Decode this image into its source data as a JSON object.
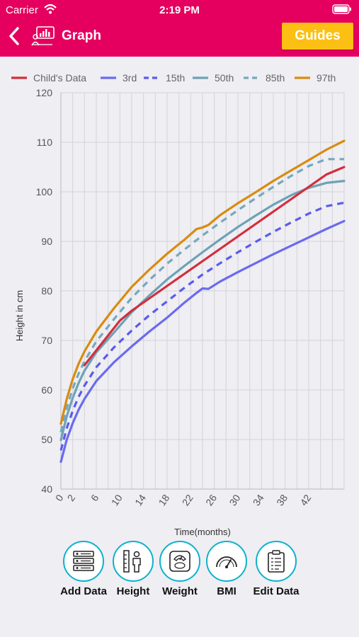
{
  "status_bar": {
    "carrier": "Carrier",
    "time": "2:19 PM"
  },
  "nav": {
    "title": "Graph",
    "guides_label": "Guides"
  },
  "chart_data": {
    "type": "line",
    "xlabel": "Time(months)",
    "ylabel": "Height in cm",
    "xlim": [
      0,
      48
    ],
    "ylim": [
      40,
      120
    ],
    "x_ticks": [
      0,
      2,
      6,
      10,
      14,
      18,
      22,
      26,
      30,
      34,
      38,
      42
    ],
    "y_ticks": [
      40,
      50,
      60,
      70,
      80,
      90,
      100,
      110,
      120
    ],
    "grid": true,
    "legend_position": "top",
    "series": [
      {
        "name": "Child's Data",
        "color": "#d42d3c",
        "dashed": false,
        "x": [
          4,
          6,
          8,
          10,
          12,
          15,
          18,
          21,
          24,
          27,
          30,
          33,
          36,
          39,
          42,
          45,
          48
        ],
        "y": [
          65,
          68,
          71,
          74,
          76,
          78.5,
          81,
          83.5,
          86,
          88.5,
          91,
          93.5,
          96,
          98.5,
          101,
          103.5,
          105
        ]
      },
      {
        "name": "3rd",
        "color": "#6a6af0",
        "dashed": false,
        "x": [
          0,
          1,
          2,
          3,
          4,
          6,
          9,
          12,
          15,
          18,
          21,
          23,
          24,
          25,
          27,
          30,
          33,
          36,
          39,
          42,
          45,
          48
        ],
        "y": [
          45.5,
          50,
          53.3,
          56,
          58.2,
          61.8,
          65.6,
          68.8,
          71.8,
          74.6,
          77.7,
          79.6,
          80.5,
          80.4,
          81.9,
          83.8,
          85.6,
          87.4,
          89.1,
          90.8,
          92.5,
          94.1
        ]
      },
      {
        "name": "15th",
        "color": "#5b5bec",
        "dashed": true,
        "x": [
          0,
          1,
          2,
          3,
          4,
          6,
          9,
          12,
          15,
          18,
          21,
          24,
          27,
          30,
          33,
          36,
          39,
          42,
          45,
          48
        ],
        "y": [
          47.8,
          52.3,
          55.8,
          58.6,
          60.9,
          64.6,
          68.6,
          72,
          75.1,
          77.9,
          80.7,
          83.3,
          85.6,
          87.8,
          89.9,
          91.9,
          93.8,
          95.6,
          97.1,
          97.8
        ]
      },
      {
        "name": "50th",
        "color": "#6fa2b5",
        "dashed": false,
        "x": [
          0,
          1,
          2,
          3,
          4,
          6,
          9,
          12,
          15,
          18,
          21,
          24,
          27,
          30,
          33,
          36,
          39,
          42,
          45,
          48
        ],
        "y": [
          49.9,
          54.7,
          58.4,
          61.4,
          63.9,
          67.6,
          71.6,
          75.7,
          79.1,
          82.3,
          85.1,
          87.8,
          90.4,
          92.9,
          95.2,
          97.4,
          99.3,
          100.8,
          101.8,
          102.2
        ]
      },
      {
        "name": "85th",
        "color": "#76a8bb",
        "dashed": true,
        "x": [
          0,
          1,
          2,
          3,
          4,
          6,
          9,
          12,
          15,
          18,
          21,
          24,
          27,
          30,
          33,
          36,
          39,
          42,
          45,
          48
        ],
        "y": [
          51.5,
          56.4,
          60.3,
          63.3,
          65.8,
          69.8,
          74.3,
          78.6,
          82.2,
          85.5,
          88.4,
          91.2,
          93.8,
          96.3,
          98.7,
          101,
          103.2,
          105.2,
          106.6,
          106.6
        ]
      },
      {
        "name": "97th",
        "color": "#d98b0f",
        "dashed": false,
        "x": [
          0,
          1,
          2,
          3,
          4,
          6,
          9,
          12,
          15,
          18,
          21,
          23,
          24,
          25,
          27,
          30,
          33,
          36,
          39,
          42,
          45,
          48
        ],
        "y": [
          53.2,
          58.2,
          62.2,
          65.3,
          67.8,
          71.8,
          76.5,
          80.8,
          84.3,
          87.5,
          90.4,
          92.5,
          92.8,
          93.3,
          95.3,
          97.7,
          99.9,
          102.2,
          104.3,
          106.4,
          108.5,
          110.3
        ]
      }
    ]
  },
  "toolbar": {
    "items": [
      {
        "label": "Add Data",
        "icon": "add-data-icon"
      },
      {
        "label": "Height",
        "icon": "height-icon"
      },
      {
        "label": "Weight",
        "icon": "weight-scale-icon"
      },
      {
        "label": "BMI",
        "icon": "bmi-gauge-icon"
      },
      {
        "label": "Edit Data",
        "icon": "clipboard-icon"
      }
    ]
  },
  "colors": {
    "header": "#e5005f",
    "guides_button": "#fcbf13",
    "tool_ring": "#0eb2cc"
  }
}
